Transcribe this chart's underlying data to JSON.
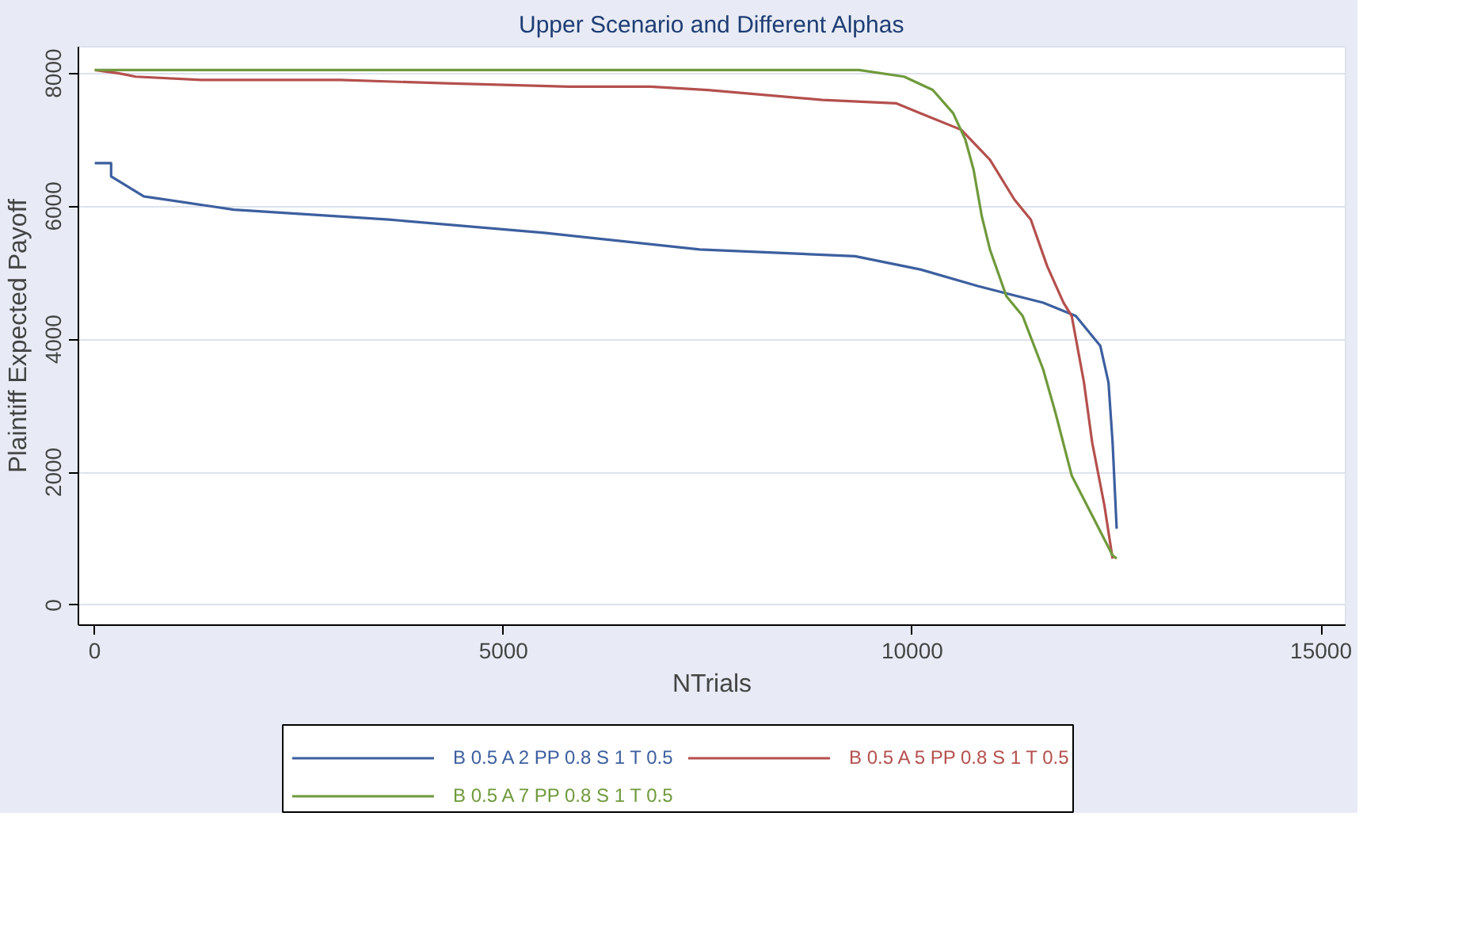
{
  "chart_data": {
    "type": "line",
    "title": "Upper Scenario and Different Alphas",
    "xlabel": "NTrials",
    "ylabel": "Plaintiff Expected Payoff",
    "xlim": [
      -200,
      15300
    ],
    "ylim": [
      -300,
      8400
    ],
    "xticks": [
      0,
      5000,
      10000,
      15000
    ],
    "yticks": [
      0,
      2000,
      4000,
      6000,
      8000
    ],
    "grid": "y",
    "legend": "bottom",
    "series": [
      {
        "name": "B 0.5 A 2 PP 0.8 S 1 T 0.5",
        "color": "#3c5f9f",
        "x": [
          0,
          200,
          200,
          600,
          1700,
          3600,
          5500,
          7400,
          9300,
          10100,
          10800,
          11600,
          12000,
          12200,
          12300,
          12400,
          12450,
          12500
        ],
        "values": [
          6650,
          6650,
          6450,
          6150,
          5950,
          5800,
          5600,
          5350,
          5250,
          5050,
          4800,
          4550,
          4350,
          4050,
          3900,
          3350,
          2450,
          1150
        ]
      },
      {
        "name": "B 0.5 A 5 PP 0.8 S 1 T 0.5",
        "color": "#b4504d",
        "x": [
          0,
          300,
          500,
          1300,
          3000,
          4300,
          5800,
          6800,
          7500,
          8900,
          9800,
          10100,
          10600,
          10950,
          11250,
          11450,
          11650,
          11850,
          11950,
          12100,
          12200,
          12350,
          12450
        ],
        "values": [
          8050,
          8000,
          7950,
          7900,
          7900,
          7850,
          7800,
          7800,
          7750,
          7600,
          7550,
          7400,
          7150,
          6700,
          6100,
          5800,
          5100,
          4550,
          4350,
          3350,
          2450,
          1500,
          700
        ]
      },
      {
        "name": "B 0.5 A 7 PP 0.8 S 1 T 0.5",
        "color": "#6f9a3c",
        "x": [
          0,
          6600,
          9350,
          9900,
          10250,
          10500,
          10650,
          10750,
          10850,
          10950,
          11150,
          11350,
          11600,
          11750,
          11950,
          12200,
          12450,
          12500
        ],
        "values": [
          8050,
          8050,
          8050,
          7950,
          7750,
          7400,
          7000,
          6550,
          5850,
          5350,
          4650,
          4350,
          3550,
          2900,
          1950,
          1350,
          750,
          700
        ]
      }
    ]
  }
}
